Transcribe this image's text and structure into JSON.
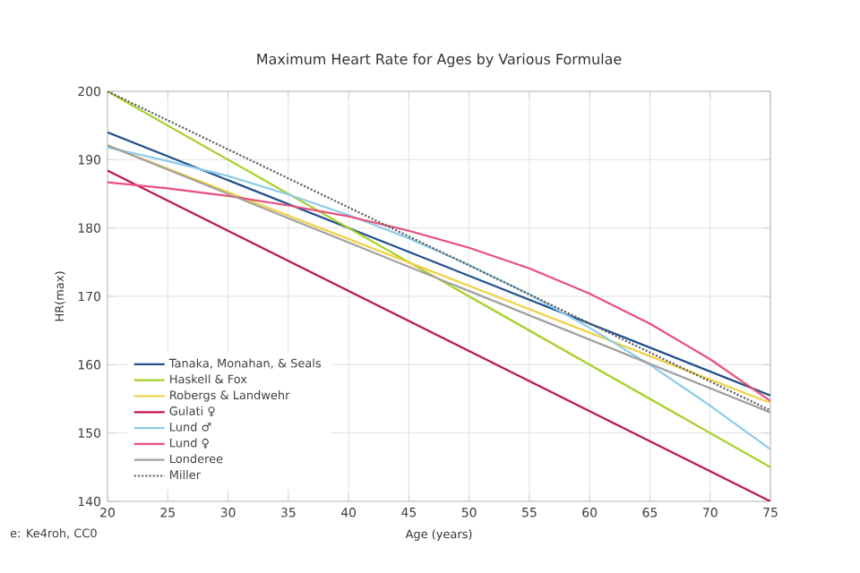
{
  "chart_data": {
    "type": "line",
    "title": "Maximum Heart Rate for Ages by Various Formulae",
    "xlabel": "Age (years)",
    "ylabel": "HR(max)",
    "xlim": [
      20,
      75
    ],
    "ylim": [
      140,
      200
    ],
    "xticks": [
      20,
      25,
      30,
      35,
      40,
      45,
      50,
      55,
      60,
      65,
      70,
      75
    ],
    "yticks": [
      140,
      150,
      160,
      170,
      180,
      190,
      200
    ],
    "grid": true,
    "legend": "bottom left",
    "marker": "none",
    "annotations": [
      "e: Ke4roh, CC0"
    ],
    "series": [
      {
        "name": "Tanaka, Monahan, & Seals",
        "color": "#1f4e8c",
        "x": [
          20,
          75
        ],
        "values": [
          194,
          155.5
        ]
      },
      {
        "name": "Haskell & Fox",
        "color": "#a8d02a",
        "x": [
          20,
          75
        ],
        "values": [
          200,
          145
        ]
      },
      {
        "name": "Robergs & Landwehr",
        "color": "#f0d040",
        "x": [
          20,
          75
        ],
        "values": [
          192.1,
          154.4
        ]
      },
      {
        "name": "Gulati ♀",
        "color": "#c0144c",
        "x": [
          20,
          75
        ],
        "values": [
          188.4,
          140
        ]
      },
      {
        "name": "Lund ♂",
        "color": "#8ccbea",
        "x": [
          20,
          25,
          30,
          35,
          40,
          45,
          50,
          55,
          60,
          65,
          70,
          75
        ],
        "values": [
          191.8,
          189.8,
          187.6,
          184.9,
          181.9,
          178.5,
          174.6,
          170.3,
          165.4,
          160.0,
          154.0,
          147.6
        ]
      },
      {
        "name": "Lund ♀",
        "color": "#e8507a",
        "x": [
          20,
          25,
          30,
          35,
          40,
          45,
          50,
          55,
          60,
          65,
          70,
          75
        ],
        "values": [
          186.7,
          185.8,
          184.7,
          183.3,
          181.7,
          179.6,
          177.1,
          174.1,
          170.4,
          166.0,
          160.8,
          154.7
        ]
      },
      {
        "name": "Londeree",
        "color": "#a0a0a0",
        "x": [
          20,
          75
        ],
        "values": [
          192.1,
          153.0
        ]
      },
      {
        "name": "Miller",
        "color": "#606060",
        "x": [
          20,
          75
        ],
        "values": [
          200,
          153.3
        ],
        "line_style": "dotted"
      }
    ]
  }
}
